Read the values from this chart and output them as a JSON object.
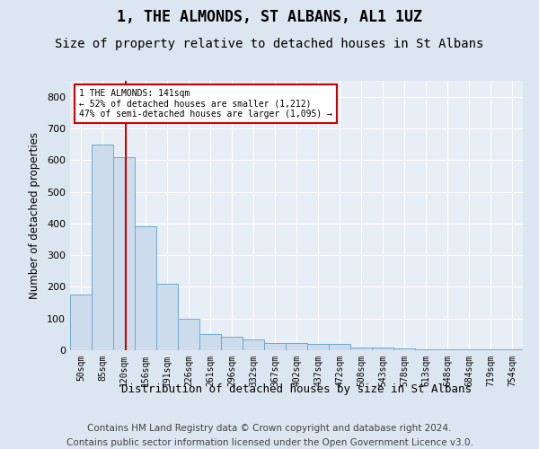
{
  "title": "1, THE ALMONDS, ST ALBANS, AL1 1UZ",
  "subtitle": "Size of property relative to detached houses in St Albans",
  "xlabel": "Distribution of detached houses by size in St Albans",
  "ylabel": "Number of detached properties",
  "bin_labels": [
    "50sqm",
    "85sqm",
    "120sqm",
    "156sqm",
    "191sqm",
    "226sqm",
    "261sqm",
    "296sqm",
    "332sqm",
    "367sqm",
    "402sqm",
    "437sqm",
    "472sqm",
    "508sqm",
    "543sqm",
    "578sqm",
    "613sqm",
    "648sqm",
    "684sqm",
    "719sqm",
    "754sqm"
  ],
  "bar_values": [
    175,
    650,
    610,
    390,
    210,
    100,
    50,
    42,
    35,
    22,
    22,
    20,
    20,
    8,
    8,
    5,
    4,
    4,
    3,
    3,
    3
  ],
  "bar_color": "#cddcec",
  "bar_edge_color": "#6aabd2",
  "property_vline_x": 2.08,
  "annotation_line1": "1 THE ALMONDS: 141sqm",
  "annotation_line2": "← 52% of detached houses are smaller (1,212)",
  "annotation_line3": "47% of semi-detached houses are larger (1,095) →",
  "vline_color": "#cc0000",
  "annotation_edge_color": "#cc0000",
  "ylim": [
    0,
    850
  ],
  "yticks": [
    0,
    100,
    200,
    300,
    400,
    500,
    600,
    700,
    800
  ],
  "bg_color": "#dce6f0",
  "plot_bg_color": "#e8eef5",
  "grid_color": "#ffffff",
  "title_fontsize": 12,
  "subtitle_fontsize": 10,
  "footer_fontsize": 7.5,
  "footer_line1": "Contains HM Land Registry data © Crown copyright and database right 2024.",
  "footer_line2": "Contains public sector information licensed under the Open Government Licence v3.0."
}
